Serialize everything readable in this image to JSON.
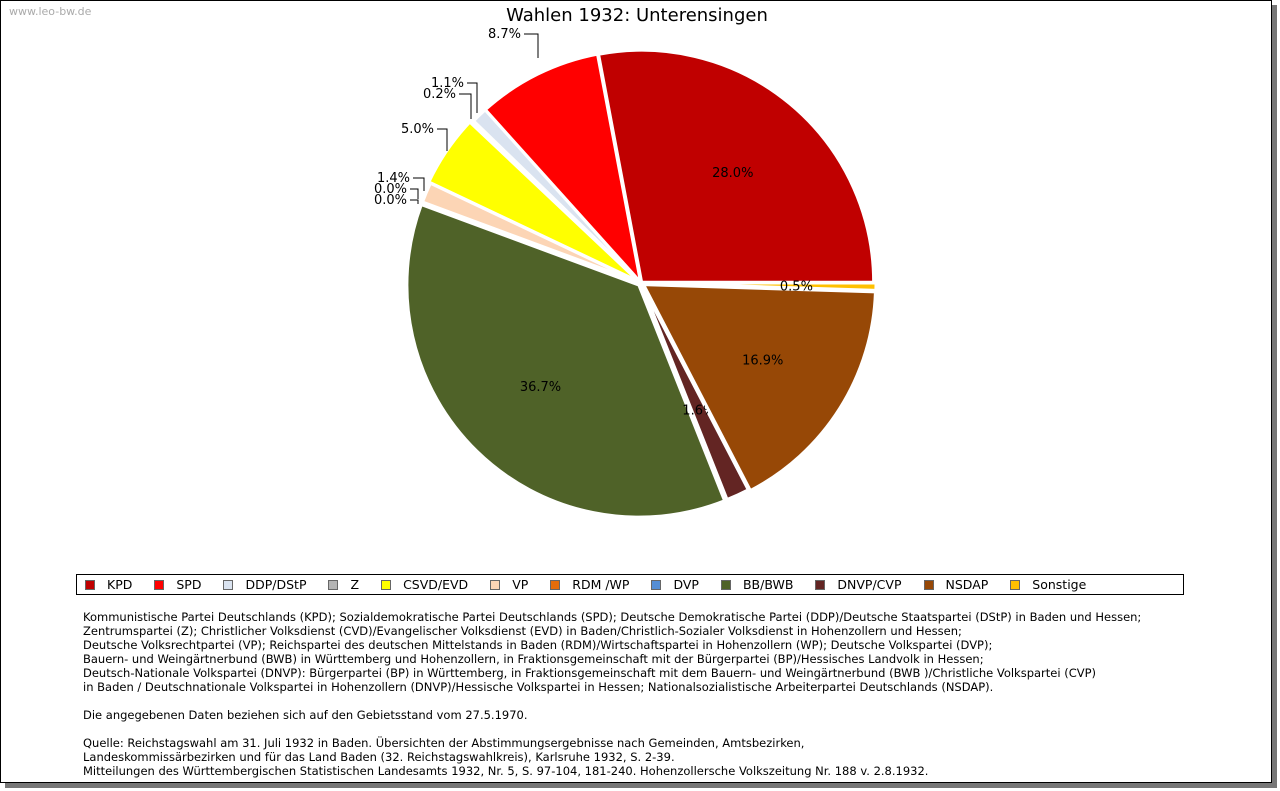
{
  "watermark": "www.leo-bw.de",
  "chart_data": {
    "type": "pie",
    "title": "Wahlen 1932: Unterensingen",
    "start_angle": "3 o'clock, counterclockwise",
    "slices": [
      {
        "name": "KPD",
        "value": 28.0,
        "label": "28.0%",
        "color": "#c00000"
      },
      {
        "name": "SPD",
        "value": 8.7,
        "label": "8.7%",
        "color": "#ff0000"
      },
      {
        "name": "DDP/DStP",
        "value": 1.1,
        "label": "1.1%",
        "color": "#dae3f0"
      },
      {
        "name": "Z",
        "value": 0.2,
        "label": "0.2%",
        "color": "#b4b4b4"
      },
      {
        "name": "CSVD/EVD",
        "value": 5.0,
        "label": "5.0%",
        "color": "#ffff00"
      },
      {
        "name": "VP",
        "value": 1.4,
        "label": "1.4%",
        "color": "#fcd5b5"
      },
      {
        "name": "RDM /WP",
        "value": 0.0,
        "label": "0.0%",
        "color": "#e46c0a"
      },
      {
        "name": "DVP",
        "value": 0.0,
        "label": "0.0%",
        "color": "#558ed5"
      },
      {
        "name": "BB/BWB",
        "value": 36.7,
        "label": "36.7%",
        "color": "#4f6228"
      },
      {
        "name": "DNVP/CVP",
        "value": 1.6,
        "label": "1.6%",
        "color": "#632523"
      },
      {
        "name": "NSDAP",
        "value": 16.9,
        "label": "16.9%",
        "color": "#974806"
      },
      {
        "name": "Sonstige",
        "value": 0.5,
        "label": "0.5%",
        "color": "#ffc000"
      }
    ],
    "legend": "bottom"
  },
  "notes": [
    "Kommunistische Partei Deutschlands (KPD); Sozialdemokratische Partei Deutschlands (SPD); Deutsche Demokratische Partei (DDP)/Deutsche Staatspartei (DStP) in Baden und Hessen;",
    "Zentrumspartei (Z); Christlicher Volksdienst (CVD)/Evangelischer Volksdienst (EVD) in Baden/Christlich-Sozialer Volksdienst in Hohenzollern und Hessen;",
    "Deutsche Volksrechtpartei (VP); Reichspartei des deutschen Mittelstands in Baden (RDM)/Wirtschaftspartei in Hohenzollern (WP); Deutsche Volkspartei (DVP);",
    "Bauern- und Weingärtnerbund (BWB) in Württemberg und Hohenzollern, in Fraktionsgemeinschaft mit der Bürgerpartei (BP)/Hessisches Landvolk in Hessen;",
    "Deutsch-Nationale Volkspartei (DNVP): Bürgerpartei (BP) in Württemberg, in Fraktionsgemeinschaft mit dem Bauern- und Weingärtnerbund (BWB )/Christliche Volkspartei (CVP)",
    "in Baden / Deutschnationale Volkspartei in Hohenzollern (DNVP)/Hessische Volkspartei in Hessen; Nationalsozialistische Arbeiterpartei Deutschlands (NSDAP).",
    "",
    "Die angegebenen Daten beziehen sich auf den Gebietsstand vom 27.5.1970.",
    "",
    "Quelle: Reichstagswahl am 31. Juli 1932 in Baden. Übersichten der Abstimmungsergebnisse nach Gemeinden, Amtsbezirken,",
    "Landeskommissärbezirken und für das Land Baden (32. Reichstagswahlkreis), Karlsruhe 1932, S. 2-39.",
    "Mitteilungen des Württembergischen Statistischen Landesamts 1932, Nr. 5, S. 97-104, 181-240. Hohenzollersche Volkszeitung Nr. 188 v. 2.8.1932."
  ]
}
